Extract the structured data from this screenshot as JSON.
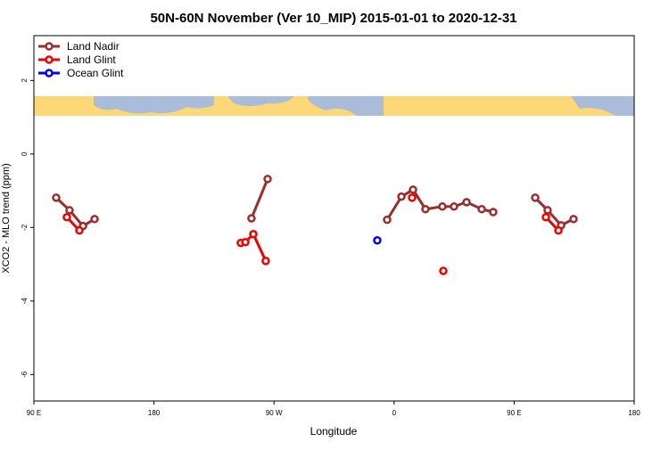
{
  "chart_data": {
    "type": "line",
    "title": "50N-60N November (Ver 10_MIP)   2015-01-01 to 2020-12-31",
    "x_label": "Longitude",
    "y_label": "XCO2 - MLO trend (ppm)",
    "xlim": [
      90,
      540
    ],
    "ylim": [
      -6.72,
      3.22
    ],
    "xticks": [
      {
        "value": 90,
        "label": "90 E"
      },
      180,
      {
        "value": 270,
        "label": "90 W"
      },
      {
        "value": 360,
        "label": "0"
      },
      {
        "value": 450,
        "label": "90 E"
      },
      {
        "value": 540,
        "label": "180"
      }
    ],
    "yticks": [
      2,
      0,
      -2,
      -4,
      -6
    ],
    "legend": "top-left",
    "series": [
      {
        "name": "Land Nadir",
        "color": "#9b2d2d",
        "x": [
          106.7,
          116.7,
          126.8,
          135.5,
          null,
          253.1,
          265.2,
          null,
          354.8,
          365.5,
          374.2,
          383.5,
          396.2,
          404.9,
          414.3,
          425.7,
          434.3,
          null,
          465.8,
          475.1,
          485.2,
          494.5
        ],
        "values": [
          -1.19,
          -1.53,
          -1.96,
          -1.77,
          null,
          -1.75,
          -0.68,
          null,
          -1.79,
          -1.16,
          -0.97,
          -1.5,
          -1.43,
          -1.43,
          -1.31,
          -1.5,
          -1.58,
          null,
          -1.19,
          -1.53,
          -1.94,
          -1.77
        ]
      },
      {
        "name": "Land Glint",
        "color": "#ee0000",
        "x": [
          114.7,
          124.1,
          null,
          245.1,
          248.5,
          254.5,
          263.8,
          null,
          373.5,
          null,
          396.9,
          null,
          473.8,
          483.2
        ],
        "values": [
          -1.72,
          -2.08,
          null,
          -2.42,
          -2.4,
          -2.18,
          -2.91,
          null,
          -1.19,
          null,
          -3.18,
          null,
          -1.72,
          -2.08
        ]
      },
      {
        "name": "Ocean Glint",
        "color": "#0000ee",
        "x": [
          347.4
        ],
        "values": [
          -2.35
        ]
      }
    ]
  }
}
